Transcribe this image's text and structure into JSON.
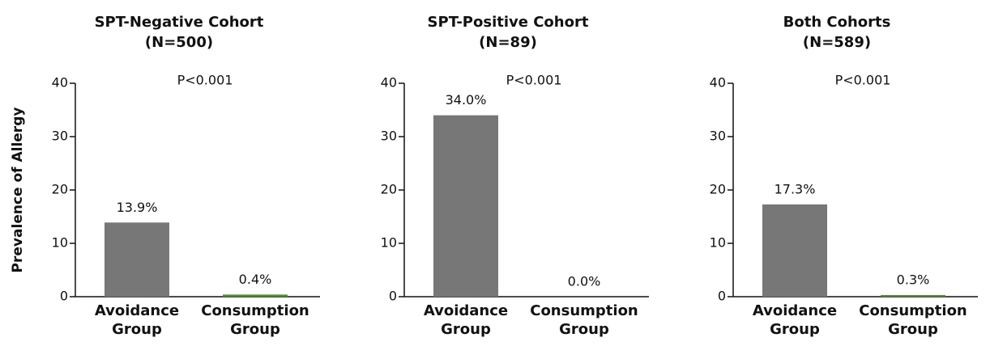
{
  "y_label": "Prevalence of Allergy",
  "chart_data": [
    {
      "type": "bar",
      "title": "SPT-Negative Cohort",
      "subtitle": "(N=500)",
      "annotation": "P<0.001",
      "categories": [
        "Avoidance Group",
        "Consumption Group"
      ],
      "values": [
        13.9,
        0.4
      ],
      "value_labels": [
        "13.9%",
        "0.4%"
      ],
      "colors": [
        "#777777",
        "#4e8f2e"
      ],
      "ylim": [
        0,
        40
      ],
      "yticks": [
        0,
        10,
        20,
        30,
        40
      ]
    },
    {
      "type": "bar",
      "title": "SPT-Positive Cohort",
      "subtitle": "(N=89)",
      "annotation": "P<0.001",
      "categories": [
        "Avoidance Group",
        "Consumption Group"
      ],
      "values": [
        34.0,
        0.0
      ],
      "value_labels": [
        "34.0%",
        "0.0%"
      ],
      "colors": [
        "#777777",
        "#4e8f2e"
      ],
      "ylim": [
        0,
        40
      ],
      "yticks": [
        0,
        10,
        20,
        30,
        40
      ]
    },
    {
      "type": "bar",
      "title": "Both Cohorts",
      "subtitle": "(N=589)",
      "annotation": "P<0.001",
      "categories": [
        "Avoidance Group",
        "Consumption Group"
      ],
      "values": [
        17.3,
        0.3
      ],
      "value_labels": [
        "17.3%",
        "0.3%"
      ],
      "colors": [
        "#777777",
        "#4e8f2e"
      ],
      "ylim": [
        0,
        40
      ],
      "yticks": [
        0,
        10,
        20,
        30,
        40
      ]
    }
  ]
}
